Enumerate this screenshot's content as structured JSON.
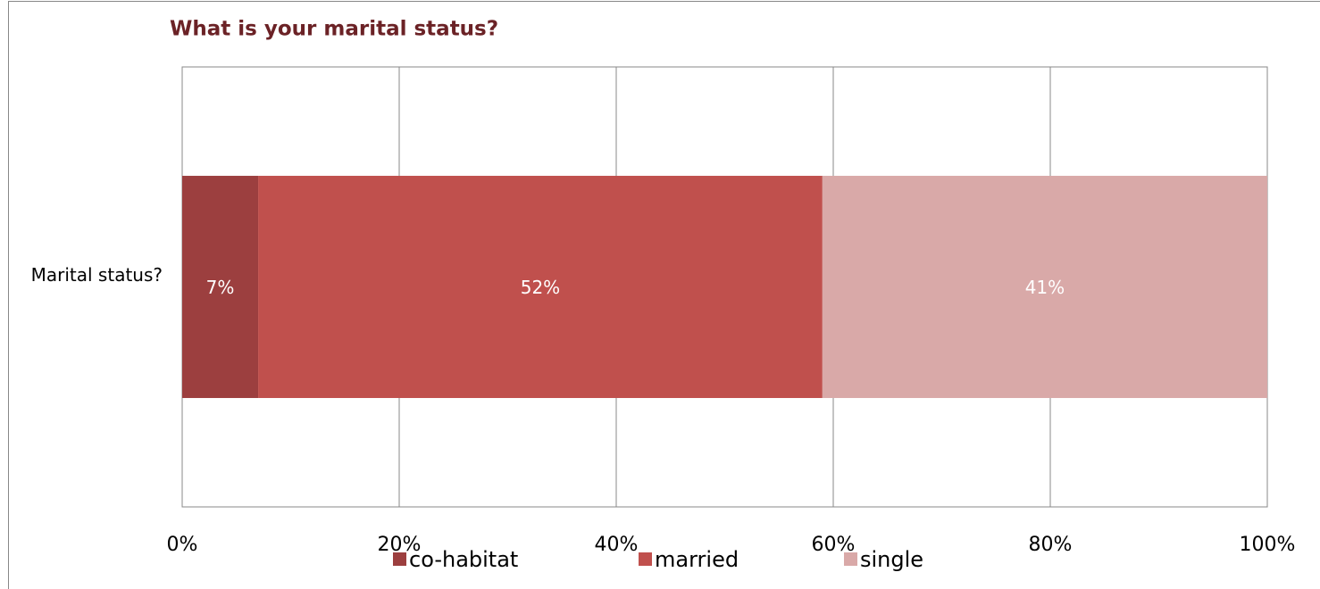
{
  "chart_data": {
    "type": "stacked-bar-horizontal",
    "title": "What is your marital status?",
    "categories": [
      "Marital status?"
    ],
    "series": [
      {
        "name": "co-habitat",
        "color": "#9c3f3f",
        "values": [
          7
        ],
        "value_labels": [
          "7%"
        ]
      },
      {
        "name": "married",
        "color": "#c0504d",
        "values": [
          52
        ],
        "value_labels": [
          "52%"
        ]
      },
      {
        "name": "single",
        "color": "#d9a9a8",
        "values": [
          41
        ],
        "value_labels": [
          "41%"
        ]
      }
    ],
    "xlim": [
      0,
      100
    ],
    "xticks": [
      {
        "value": 0,
        "label": "0%"
      },
      {
        "value": 20,
        "label": "20%"
      },
      {
        "value": 40,
        "label": "40%"
      },
      {
        "value": 60,
        "label": "60%"
      },
      {
        "value": 80,
        "label": "80%"
      },
      {
        "value": 100,
        "label": "100%"
      }
    ],
    "grid": true,
    "legend": "bottom"
  }
}
